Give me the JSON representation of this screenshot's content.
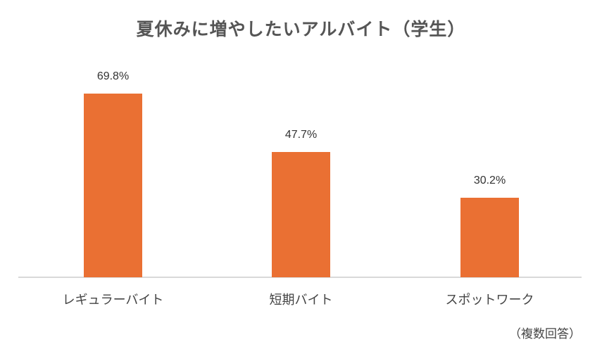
{
  "chart_data": {
    "type": "bar",
    "title": "夏休みに増やしたいアルバイト（学生）",
    "categories": [
      "レギュラーバイト",
      "短期バイト",
      "スポットワーク"
    ],
    "values": [
      69.8,
      47.7,
      30.2
    ],
    "value_labels": [
      "69.8%",
      "47.7%",
      "30.2%"
    ],
    "unit": "%",
    "xlabel": "",
    "ylabel": "",
    "ylim": [
      0,
      81
    ],
    "grid": false,
    "legend": null,
    "annotation": "（複数回答）",
    "bar_color": "#ea7033"
  }
}
